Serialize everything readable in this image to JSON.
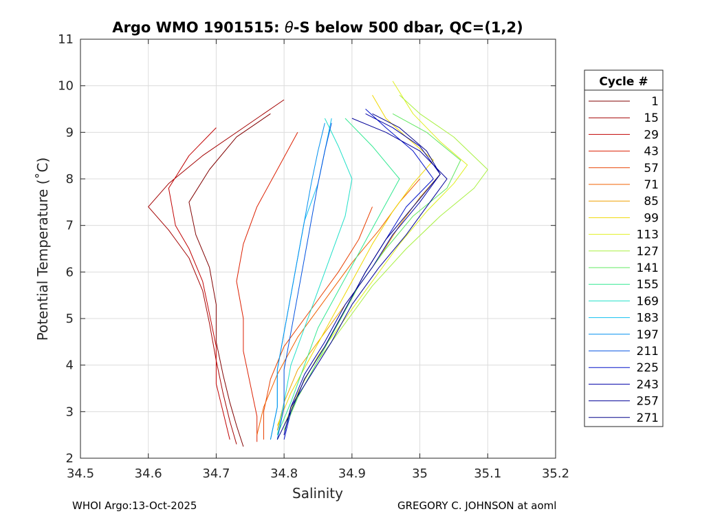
{
  "chart_data": {
    "type": "line",
    "title_parts": [
      "Argo WMO 1901515: ",
      "θ",
      "-S below 500 dbar,  QC=(1,2)"
    ],
    "xlabel": "Salinity",
    "ylabel": "Potential Temperature (˚C)",
    "xlim": [
      34.5,
      35.2
    ],
    "ylim": [
      2,
      11
    ],
    "x_ticks": [
      34.5,
      34.6,
      34.7,
      34.8,
      34.9,
      35.0,
      35.1,
      35.2
    ],
    "x_tick_labels": [
      "34.5",
      "34.6",
      "34.7",
      "34.8",
      "34.9",
      "35",
      "35.1",
      "35.2"
    ],
    "y_ticks": [
      2,
      3,
      4,
      5,
      6,
      7,
      8,
      9,
      10,
      11
    ],
    "y_tick_labels": [
      "2",
      "3",
      "4",
      "5",
      "6",
      "7",
      "8",
      "9",
      "10",
      "11"
    ],
    "grid": true,
    "legend_position": "right",
    "legend": {
      "title": "Cycle #",
      "entries": [
        {
          "label": "1",
          "color": "#800000"
        },
        {
          "label": "15",
          "color": "#a30000"
        },
        {
          "label": "29",
          "color": "#c00000"
        },
        {
          "label": "43",
          "color": "#dc1f00"
        },
        {
          "label": "57",
          "color": "#e84000"
        },
        {
          "label": "71",
          "color": "#f06000"
        },
        {
          "label": "85",
          "color": "#f0a000"
        },
        {
          "label": "99",
          "color": "#f0d800"
        },
        {
          "label": "113",
          "color": "#e0f020"
        },
        {
          "label": "127",
          "color": "#a8f040"
        },
        {
          "label": "141",
          "color": "#60e860"
        },
        {
          "label": "155",
          "color": "#30e890"
        },
        {
          "label": "169",
          "color": "#20e0c8"
        },
        {
          "label": "183",
          "color": "#10c0f0"
        },
        {
          "label": "197",
          "color": "#0090f0"
        },
        {
          "label": "211",
          "color": "#0050e0"
        },
        {
          "label": "225",
          "color": "#0010c8"
        },
        {
          "label": "243",
          "color": "#0000a8"
        },
        {
          "label": "257",
          "color": "#000098"
        },
        {
          "label": "271",
          "color": "#000088"
        }
      ]
    },
    "series": [
      {
        "name": "1",
        "color": "#800000",
        "salinity": [
          34.74,
          34.73,
          34.72,
          34.71,
          34.7,
          34.7,
          34.69,
          34.67,
          34.66,
          34.69,
          34.73,
          34.78
        ],
        "theta": [
          2.25,
          2.7,
          3.2,
          3.8,
          4.5,
          5.3,
          6.1,
          6.8,
          7.5,
          8.2,
          8.9,
          9.4
        ]
      },
      {
        "name": "15",
        "color": "#a30000",
        "salinity": [
          34.73,
          34.72,
          34.71,
          34.7,
          34.69,
          34.68,
          34.66,
          34.63,
          34.6,
          34.63,
          34.68,
          34.74,
          34.8
        ],
        "theta": [
          2.3,
          2.8,
          3.4,
          4.1,
          4.9,
          5.6,
          6.3,
          6.9,
          7.4,
          7.9,
          8.5,
          9.1,
          9.7
        ]
      },
      {
        "name": "29",
        "color": "#c00000",
        "salinity": [
          34.72,
          34.71,
          34.7,
          34.7,
          34.69,
          34.68,
          34.66,
          34.64,
          34.63,
          34.66,
          34.7
        ],
        "theta": [
          2.4,
          3.0,
          3.6,
          4.4,
          5.1,
          5.8,
          6.5,
          7.0,
          7.8,
          8.5,
          9.1
        ]
      },
      {
        "name": "43",
        "color": "#dc1f00",
        "salinity": [
          34.76,
          34.76,
          34.75,
          34.74,
          34.74,
          34.73,
          34.74,
          34.76,
          34.79,
          34.82
        ],
        "theta": [
          2.35,
          2.9,
          3.6,
          4.3,
          5.0,
          5.8,
          6.6,
          7.4,
          8.2,
          9.0
        ]
      },
      {
        "name": "57",
        "color": "#e84000",
        "salinity": [
          34.77,
          34.77,
          34.78,
          34.8,
          34.84,
          34.88,
          34.91,
          34.93
        ],
        "theta": [
          2.4,
          3.0,
          3.7,
          4.4,
          5.2,
          6.0,
          6.7,
          7.4
        ]
      },
      {
        "name": "71",
        "color": "#f06000",
        "salinity": [
          34.76,
          34.77,
          34.79,
          34.82,
          34.86,
          34.9,
          34.94,
          34.97,
          35.0
        ],
        "theta": [
          2.5,
          3.1,
          3.8,
          4.6,
          5.4,
          6.2,
          6.9,
          7.5,
          8.0
        ]
      },
      {
        "name": "85",
        "color": "#f0a000",
        "salinity": [
          34.79,
          34.8,
          34.82,
          34.86,
          34.9,
          34.94,
          34.97,
          35.0,
          35.03
        ],
        "theta": [
          2.6,
          3.2,
          3.9,
          4.7,
          5.5,
          6.3,
          7.0,
          7.6,
          8.1
        ]
      },
      {
        "name": "99",
        "color": "#f0d800",
        "salinity": [
          34.79,
          34.81,
          34.84,
          34.87,
          34.9,
          34.93,
          34.96,
          34.99,
          35.02,
          34.98,
          34.95,
          34.93
        ],
        "theta": [
          2.7,
          3.4,
          4.2,
          5.0,
          5.8,
          6.6,
          7.3,
          7.9,
          8.4,
          8.9,
          9.3,
          9.8
        ]
      },
      {
        "name": "113",
        "color": "#e0f020",
        "salinity": [
          34.8,
          34.82,
          34.85,
          34.89,
          34.93,
          34.97,
          35.01,
          35.05,
          35.07,
          35.03,
          34.99,
          34.96
        ],
        "theta": [
          2.7,
          3.4,
          4.2,
          5.0,
          5.8,
          6.6,
          7.3,
          7.9,
          8.3,
          8.8,
          9.4,
          10.1
        ]
      },
      {
        "name": "127",
        "color": "#a8f040",
        "salinity": [
          34.8,
          34.82,
          34.85,
          34.89,
          34.93,
          34.98,
          35.03,
          35.08,
          35.1,
          35.05,
          35.0,
          34.97
        ],
        "theta": [
          2.6,
          3.3,
          4.1,
          4.9,
          5.7,
          6.5,
          7.2,
          7.8,
          8.2,
          8.9,
          9.4,
          9.8
        ]
      },
      {
        "name": "141",
        "color": "#60e860",
        "salinity": [
          34.8,
          34.82,
          34.85,
          34.88,
          34.91,
          34.95,
          34.99,
          35.04,
          35.06,
          35.01,
          34.96
        ],
        "theta": [
          2.6,
          3.3,
          4.1,
          4.9,
          5.7,
          6.5,
          7.2,
          7.8,
          8.4,
          9.0,
          9.4
        ]
      },
      {
        "name": "155",
        "color": "#30e890",
        "salinity": [
          34.79,
          34.81,
          34.83,
          34.85,
          34.88,
          34.91,
          34.94,
          34.97,
          34.93,
          34.89
        ],
        "theta": [
          2.5,
          3.2,
          4.0,
          4.8,
          5.6,
          6.4,
          7.2,
          8.0,
          8.7,
          9.3
        ]
      },
      {
        "name": "169",
        "color": "#20e0c8",
        "salinity": [
          34.79,
          34.8,
          34.81,
          34.83,
          34.85,
          34.87,
          34.89,
          34.9,
          34.88,
          34.86
        ],
        "theta": [
          2.5,
          3.2,
          4.0,
          4.8,
          5.6,
          6.4,
          7.2,
          8.0,
          8.7,
          9.3
        ]
      },
      {
        "name": "183",
        "color": "#10c0f0",
        "salinity": [
          34.78,
          34.79,
          34.79,
          34.8,
          34.81,
          34.82,
          34.83,
          34.85,
          34.86,
          34.87
        ],
        "theta": [
          2.4,
          3.1,
          3.9,
          4.7,
          5.5,
          6.3,
          7.1,
          7.9,
          8.6,
          9.3
        ]
      },
      {
        "name": "197",
        "color": "#0090f0",
        "salinity": [
          34.78,
          34.79,
          34.79,
          34.8,
          34.81,
          34.82,
          34.83,
          34.84,
          34.85,
          34.86
        ],
        "theta": [
          2.4,
          3.1,
          3.9,
          4.7,
          5.5,
          6.3,
          7.1,
          7.9,
          8.6,
          9.2
        ]
      },
      {
        "name": "211",
        "color": "#0050e0",
        "salinity": [
          34.79,
          34.8,
          34.8,
          34.81,
          34.82,
          34.83,
          34.84,
          34.85,
          34.86,
          34.87
        ],
        "theta": [
          2.4,
          3.1,
          3.9,
          4.7,
          5.5,
          6.3,
          7.1,
          7.9,
          8.6,
          9.2
        ]
      },
      {
        "name": "225",
        "color": "#0010c8",
        "salinity": [
          34.8,
          34.81,
          34.83,
          34.86,
          34.89,
          34.92,
          34.95,
          34.98,
          35.02,
          34.99,
          34.95,
          34.92
        ],
        "theta": [
          2.4,
          3.0,
          3.7,
          4.4,
          5.2,
          6.0,
          6.7,
          7.4,
          8.0,
          8.6,
          9.1,
          9.5
        ]
      },
      {
        "name": "243",
        "color": "#0000a8",
        "salinity": [
          34.8,
          34.81,
          34.83,
          34.86,
          34.89,
          34.93,
          34.96,
          35.0,
          35.03,
          35.0,
          34.96,
          34.92
        ],
        "theta": [
          2.5,
          3.1,
          3.8,
          4.5,
          5.3,
          6.1,
          6.8,
          7.5,
          8.1,
          8.7,
          9.1,
          9.4
        ]
      },
      {
        "name": "257",
        "color": "#000098",
        "salinity": [
          34.8,
          34.81,
          34.84,
          34.87,
          34.9,
          34.94,
          34.98,
          35.01,
          35.04,
          35.0,
          34.95,
          34.9
        ],
        "theta": [
          2.5,
          3.1,
          3.8,
          4.5,
          5.3,
          6.1,
          6.8,
          7.4,
          8.0,
          8.6,
          9.0,
          9.3
        ]
      },
      {
        "name": "271",
        "color": "#000088",
        "salinity": [
          34.79,
          34.81,
          34.83,
          34.86,
          34.89,
          34.92,
          34.95,
          34.99,
          35.03,
          35.01,
          34.97,
          34.93
        ],
        "theta": [
          2.4,
          3.0,
          3.7,
          4.4,
          5.2,
          6.0,
          6.7,
          7.4,
          8.1,
          8.6,
          9.1,
          9.4
        ]
      }
    ]
  },
  "footer": {
    "left": "WHOI Argo:13-Oct-2025",
    "right": "GREGORY C. JOHNSON at aoml"
  }
}
